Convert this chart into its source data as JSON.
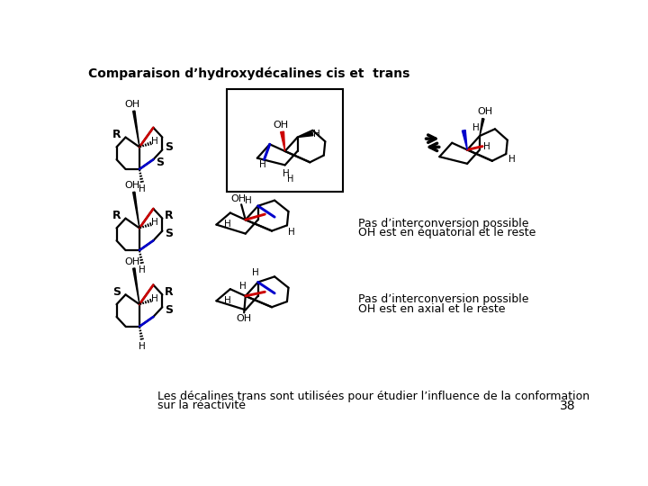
{
  "title": "Comparaison d’hydroxydécalines cis et  trans",
  "title_fontsize": 10,
  "bg_color": "#ffffff",
  "text_color": "#000000",
  "red_color": "#cc0000",
  "blue_color": "#0000cc",
  "black_color": "#000000",
  "footer_text": "Les décalines trans sont utilisées pour étudier l’influence de la conformation",
  "footer_text2": "sur la réactivité",
  "footer_num": "38",
  "row2_text1": "Pas d’interconversion possible",
  "row2_text2": "OH est en équatorial et le reste",
  "row3_text1": "Pas d’interconversion possible",
  "row3_text2": "OH est en axial et le reste"
}
